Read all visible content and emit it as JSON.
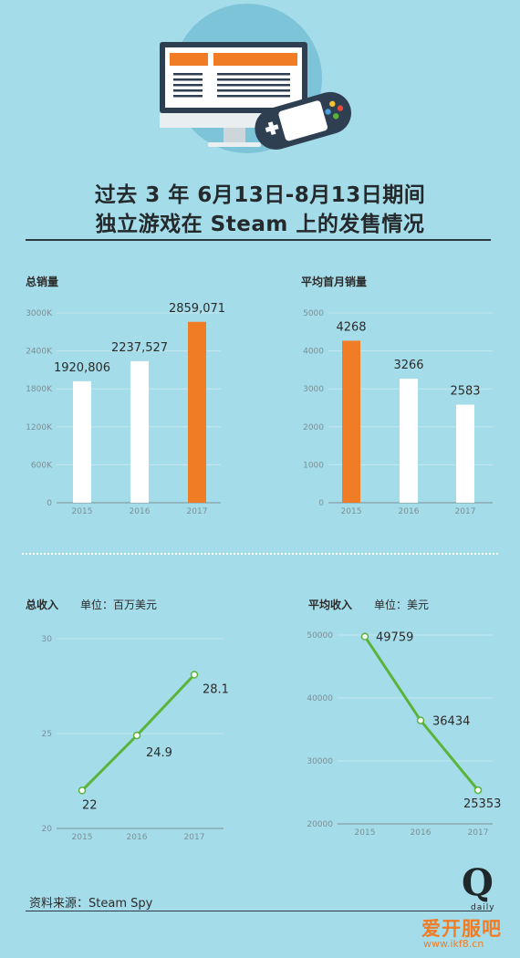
{
  "title": {
    "line1": "过去 3 年 6月13日-8月13日期间",
    "line2": "独立游戏在 Steam 上的发售情况"
  },
  "source": "资料来源：Steam Spy",
  "logo": {
    "letter": "Q",
    "word": "daily"
  },
  "watermark": {
    "text": "爱开服吧",
    "url": "www.ikf8.cn"
  },
  "colors": {
    "background": "#a5dce9",
    "bar_default": "#ffffff",
    "bar_highlight": "#f07c25",
    "line": "#5ab43c",
    "grid": "#c4e7ef",
    "axis": "#7a8f96",
    "text": "#2b2b2b"
  },
  "chart_data": [
    {
      "id": "total_sales",
      "type": "bar",
      "title": "总销量",
      "unit": "",
      "categories": [
        "2015",
        "2016",
        "2017"
      ],
      "values": [
        1920806,
        2237527,
        2859071
      ],
      "value_labels": [
        "1920,806",
        "2237,527",
        "2859,071"
      ],
      "highlight": [
        false,
        false,
        true
      ],
      "yticks": [
        0,
        600000,
        1200000,
        1800000,
        2400000,
        3000000
      ],
      "ytick_labels": [
        "0",
        "600K",
        "1200K",
        "1800K",
        "2400K",
        "3000K"
      ],
      "ylim": [
        0,
        3000000
      ],
      "grid": true
    },
    {
      "id": "avg_first_month_sales",
      "type": "bar",
      "title": "平均首月销量",
      "unit": "",
      "categories": [
        "2015",
        "2016",
        "2017"
      ],
      "values": [
        4268,
        3266,
        2583
      ],
      "value_labels": [
        "4268",
        "3266",
        "2583"
      ],
      "highlight": [
        true,
        false,
        false
      ],
      "yticks": [
        0,
        1000,
        2000,
        3000,
        4000,
        5000
      ],
      "ytick_labels": [
        "0",
        "1000",
        "2000",
        "3000",
        "4000",
        "5000"
      ],
      "ylim": [
        0,
        5000
      ],
      "grid": true
    },
    {
      "id": "total_revenue",
      "type": "line",
      "title": "总收入",
      "unit": "单位：百万美元",
      "categories": [
        "2015",
        "2016",
        "2017"
      ],
      "values": [
        22,
        24.9,
        28.1
      ],
      "value_labels": [
        "22",
        "24.9",
        "28.1"
      ],
      "yticks": [
        20,
        25,
        30
      ],
      "ytick_labels": [
        "20",
        "25",
        "30"
      ],
      "ylim": [
        20,
        30
      ],
      "grid": true
    },
    {
      "id": "avg_revenue",
      "type": "line",
      "title": "平均收入",
      "unit": "单位：美元",
      "categories": [
        "2015",
        "2016",
        "2017"
      ],
      "values": [
        49759,
        36434,
        25353
      ],
      "value_labels": [
        "49759",
        "36434",
        "25353"
      ],
      "yticks": [
        20000,
        30000,
        40000,
        50000
      ],
      "ytick_labels": [
        "20000",
        "30000",
        "40000",
        "50000"
      ],
      "ylim": [
        20000,
        50000
      ],
      "grid": true
    }
  ]
}
